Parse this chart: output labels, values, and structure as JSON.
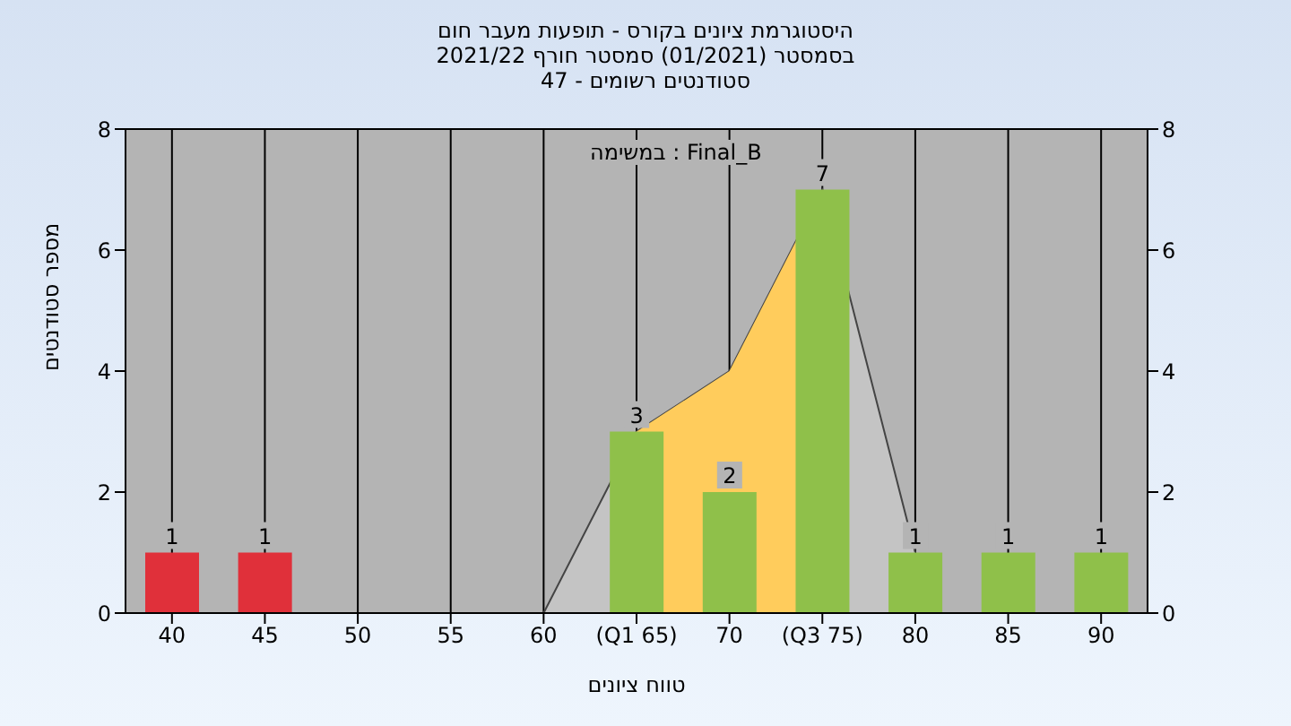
{
  "chart_data": {
    "type": "bar",
    "title": "היסטוגרמת ציונים בקורס - תופעות מעבר חום",
    "subtitle": "בסמסטר  (01/2021)  סמסטר חורף 2021/22\nסטודנטים רשומים - 47",
    "xlabel": "טווח ציונים",
    "ylabel": "מספר סטודנטים",
    "annotations": [
      "במשימה : Final_B"
    ],
    "categories": [
      "40",
      "45",
      "50",
      "55",
      "60",
      "(Q1 65)",
      "70",
      "(Q3 75)",
      "80",
      "85",
      "90"
    ],
    "series": [
      {
        "type": "area",
        "color": "#c4c4c4",
        "values": [
          null,
          null,
          null,
          null,
          0,
          3,
          4,
          7,
          1,
          null,
          null
        ]
      },
      {
        "type": "area",
        "color": "#ffcc5c",
        "values": [
          null,
          null,
          null,
          null,
          null,
          3,
          4,
          7,
          null,
          null,
          null
        ]
      },
      {
        "colors": [
          "#e0303a",
          "#e0303a",
          "#8fc04a",
          "#8fc04a",
          "#8fc04a",
          "#8fc04a",
          "#8fc04a",
          "#8fc04a",
          "#8fc04a",
          "#8fc04a",
          "#8fc04a"
        ],
        "values": [
          1,
          1,
          0,
          0,
          0,
          3,
          2,
          7,
          1,
          1,
          1
        ],
        "value_labels": [
          "1",
          "1",
          null,
          null,
          null,
          "3",
          "2",
          "7",
          "1",
          "1",
          "1"
        ]
      }
    ],
    "ylim": [
      0,
      8
    ],
    "yticks": [
      0,
      2,
      4,
      6,
      8
    ],
    "y2lim": [
      0,
      8
    ],
    "y2ticks": [
      0,
      2,
      4,
      6,
      8
    ],
    "grid": true
  }
}
